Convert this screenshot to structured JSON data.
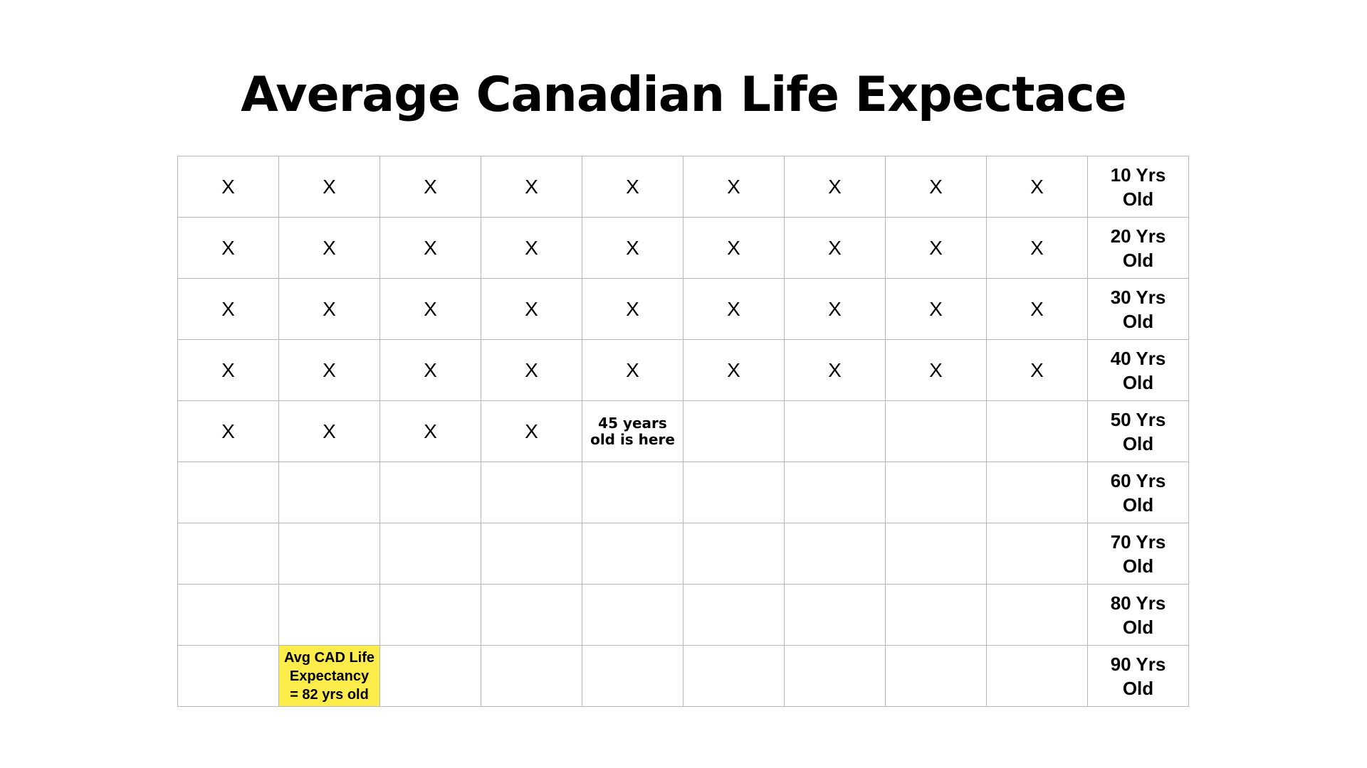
{
  "title": "Average Canadian Life Expectace",
  "grid": {
    "mark": "X",
    "highlight_color": "#fdec4a",
    "rows": [
      {
        "label_line1": "10 Yrs",
        "label_line2": "Old",
        "cells": [
          {
            "text": "X"
          },
          {
            "text": "X"
          },
          {
            "text": "X"
          },
          {
            "text": "X"
          },
          {
            "text": "X"
          },
          {
            "text": "X"
          },
          {
            "text": "X"
          },
          {
            "text": "X"
          },
          {
            "text": "X"
          }
        ]
      },
      {
        "label_line1": "20 Yrs",
        "label_line2": "Old",
        "cells": [
          {
            "text": "X"
          },
          {
            "text": "X"
          },
          {
            "text": "X"
          },
          {
            "text": "X"
          },
          {
            "text": "X"
          },
          {
            "text": "X"
          },
          {
            "text": "X"
          },
          {
            "text": "X"
          },
          {
            "text": "X"
          }
        ]
      },
      {
        "label_line1": "30 Yrs",
        "label_line2": "Old",
        "cells": [
          {
            "text": "X"
          },
          {
            "text": "X"
          },
          {
            "text": "X"
          },
          {
            "text": "X"
          },
          {
            "text": "X"
          },
          {
            "text": "X"
          },
          {
            "text": "X"
          },
          {
            "text": "X"
          },
          {
            "text": "X"
          }
        ]
      },
      {
        "label_line1": "40 Yrs",
        "label_line2": "Old",
        "cells": [
          {
            "text": "X"
          },
          {
            "text": "X"
          },
          {
            "text": "X"
          },
          {
            "text": "X"
          },
          {
            "text": "X"
          },
          {
            "text": "X"
          },
          {
            "text": "X"
          },
          {
            "text": "X"
          },
          {
            "text": "X"
          }
        ]
      },
      {
        "label_line1": "50 Yrs",
        "label_line2": "Old",
        "cells": [
          {
            "text": "X"
          },
          {
            "text": "X"
          },
          {
            "text": "X"
          },
          {
            "text": "X"
          },
          {
            "text": "45 years\nold is here",
            "kind": "note"
          },
          {
            "text": ""
          },
          {
            "text": ""
          },
          {
            "text": ""
          },
          {
            "text": ""
          }
        ]
      },
      {
        "label_line1": "60 Yrs",
        "label_line2": "Old",
        "cells": [
          {
            "text": ""
          },
          {
            "text": ""
          },
          {
            "text": ""
          },
          {
            "text": ""
          },
          {
            "text": ""
          },
          {
            "text": ""
          },
          {
            "text": ""
          },
          {
            "text": ""
          },
          {
            "text": ""
          }
        ]
      },
      {
        "label_line1": "70 Yrs",
        "label_line2": "Old",
        "cells": [
          {
            "text": ""
          },
          {
            "text": ""
          },
          {
            "text": ""
          },
          {
            "text": ""
          },
          {
            "text": ""
          },
          {
            "text": ""
          },
          {
            "text": ""
          },
          {
            "text": ""
          },
          {
            "text": ""
          }
        ]
      },
      {
        "label_line1": "80 Yrs",
        "label_line2": "Old",
        "cells": [
          {
            "text": ""
          },
          {
            "text": ""
          },
          {
            "text": ""
          },
          {
            "text": ""
          },
          {
            "text": ""
          },
          {
            "text": ""
          },
          {
            "text": ""
          },
          {
            "text": ""
          },
          {
            "text": ""
          }
        ]
      },
      {
        "label_line1": "90 Yrs",
        "label_line2": "Old",
        "cells": [
          {
            "text": ""
          },
          {
            "text": "Avg CAD Life\nExpectancy\n= 82 yrs old",
            "kind": "highlight"
          },
          {
            "text": ""
          },
          {
            "text": ""
          },
          {
            "text": ""
          },
          {
            "text": ""
          },
          {
            "text": ""
          },
          {
            "text": ""
          },
          {
            "text": ""
          }
        ]
      }
    ]
  }
}
